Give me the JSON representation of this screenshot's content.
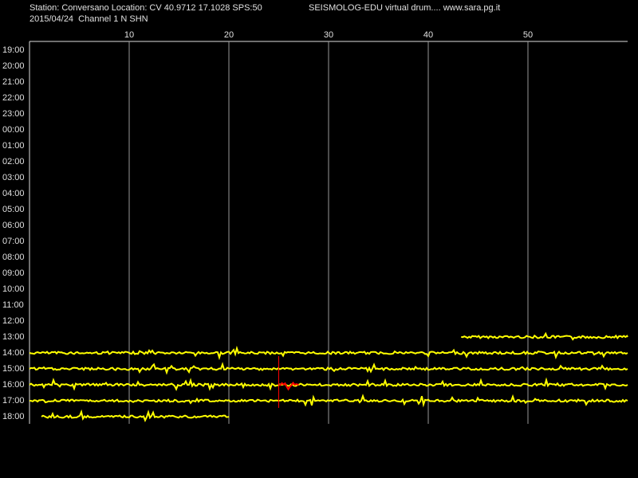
{
  "chart_data": {
    "type": "helicorder",
    "header": {
      "station": "Station: Conversano Location: CV 40.9712 17.1028 SPS:50",
      "app": "SEISMOLOG-EDU virtual drum.... www.sara.pg.it",
      "channel": "2015/04/24  Channel 1 N SHN"
    },
    "xlim": [
      0,
      60
    ],
    "xticks": [
      10,
      20,
      30,
      40,
      50
    ],
    "rows": [
      "19:00",
      "20:00",
      "21:00",
      "22:00",
      "23:00",
      "00:00",
      "01:00",
      "02:00",
      "03:00",
      "04:00",
      "05:00",
      "06:00",
      "07:00",
      "08:00",
      "09:00",
      "10:00",
      "11:00",
      "12:00",
      "13:00",
      "14:00",
      "15:00",
      "16:00",
      "17:00",
      "18:00"
    ],
    "segments": [
      null,
      null,
      null,
      null,
      null,
      null,
      null,
      null,
      null,
      null,
      null,
      null,
      null,
      null,
      null,
      null,
      null,
      null,
      [
        43.3,
        60
      ],
      [
        0,
        60
      ],
      [
        0,
        60
      ],
      [
        0,
        60
      ],
      [
        0,
        60
      ],
      [
        1.2,
        20
      ]
    ],
    "event_segments": [
      null,
      null,
      null,
      null,
      null,
      null,
      null,
      null,
      null,
      null,
      null,
      null,
      null,
      null,
      null,
      null,
      null,
      null,
      null,
      null,
      null,
      [
        25,
        27
      ],
      null,
      null
    ],
    "marker_minute": 25,
    "color": "#ffff00",
    "event_color": "#ff0000"
  }
}
